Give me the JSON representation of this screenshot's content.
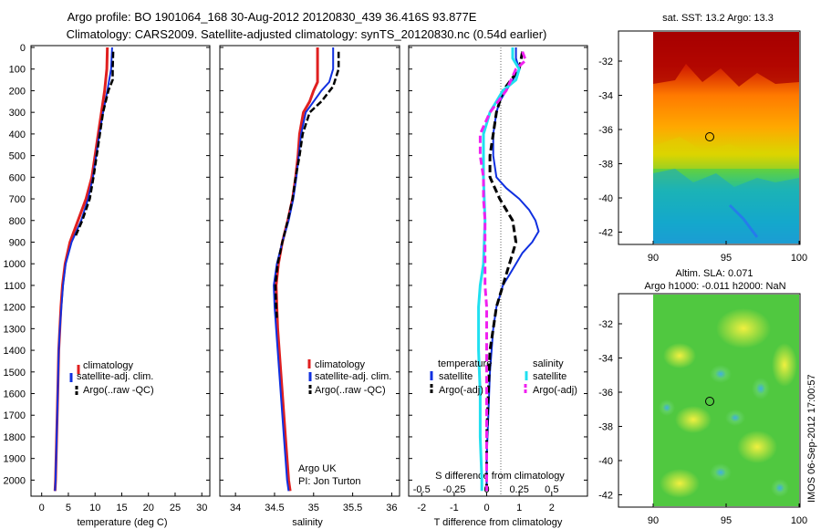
{
  "header": {
    "line1": "Argo profile: BO 1901064_168 30-Aug-2012 20120830_439 36.416S 93.877E",
    "line2": "Climatology: CARS2009. Satellite-adjusted climatology: synTS_20120830.nc (0.54d earlier)"
  },
  "depth_ticks": [
    "0",
    "100",
    "200",
    "300",
    "400",
    "500",
    "600",
    "700",
    "800",
    "900",
    "1000",
    "1100",
    "1200",
    "1300",
    "1400",
    "1500",
    "1600",
    "1700",
    "1800",
    "1900",
    "2000"
  ],
  "panels": {
    "temperature": {
      "xlabel": "temperature (deg C)",
      "xticks": [
        "0",
        "5",
        "10",
        "15",
        "20",
        "25",
        "30"
      ],
      "legend": [
        "climatology",
        "satellite-adj. clim.",
        "Argo(..raw -QC)"
      ]
    },
    "salinity": {
      "xlabel": "salinity",
      "xticks": [
        "34",
        "34.5",
        "35",
        "35.5",
        "36"
      ],
      "legend": [
        "climatology",
        "satellite-adj. clim.",
        "Argo(..raw -QC)"
      ],
      "note1": "Argo UK",
      "note2": "PI: Jon Turton"
    },
    "difference": {
      "xlabel": "T difference from climatology",
      "xticks": [
        "-2",
        "-1",
        "0",
        "1",
        "2"
      ],
      "top_label": "S difference from climatology",
      "top_ticks": [
        "-0.5",
        "-0.25",
        "0",
        "0.25",
        "0.5"
      ],
      "legend_temp_title": "temperature",
      "legend_sal_title": "salinity",
      "legend_temp": [
        "satellite",
        "Argo(-adj)"
      ],
      "legend_sal": [
        "satellite",
        "Argo(-adj)"
      ]
    }
  },
  "maps": {
    "sst": {
      "title": "sat. SST: 13.2 Argo: 13.3",
      "yticks": [
        "-32",
        "-34",
        "-36",
        "-38",
        "-40",
        "-42"
      ],
      "xticks": [
        "90",
        "95",
        "100"
      ]
    },
    "sla": {
      "title1": "Altim. SLA: 0.071",
      "title2": "Argo h1000: -0.011 h2000: NaN",
      "yticks": [
        "-32",
        "-34",
        "-36",
        "-38",
        "-40",
        "-42"
      ],
      "xticks": [
        "90",
        "95",
        "100"
      ]
    }
  },
  "footer": {
    "stamp": "IMOS 06-Sep-2012 17:00:57"
  },
  "colors": {
    "climatology": "#e02020",
    "satellite": "#1030e0",
    "argo": "#000000",
    "sat_sal": "#20e0f0",
    "argo_sal": "#f020f0"
  },
  "chart_data": [
    {
      "type": "line",
      "title": "",
      "xlabel": "temperature (deg C)",
      "ylabel": "",
      "xlim": [
        -2,
        31.5
      ],
      "ylim": [
        2070,
        0
      ],
      "series": [
        {
          "name": "climatology",
          "depth": [
            0,
            100,
            200,
            300,
            400,
            500,
            600,
            700,
            800,
            900,
            1000,
            1100,
            1200,
            1300,
            1400,
            1600,
            1800,
            2000,
            2050
          ],
          "values": [
            12.3,
            12.2,
            11.8,
            11.2,
            10.6,
            10.0,
            9.4,
            8.3,
            6.8,
            5.3,
            4.4,
            3.9,
            3.6,
            3.4,
            3.2,
            3.0,
            2.8,
            2.6,
            2.5
          ]
        },
        {
          "name": "satellite-adj. clim.",
          "depth": [
            0,
            100,
            200,
            300,
            400,
            500,
            600,
            700,
            800,
            900,
            1000,
            1100,
            1200,
            1300,
            1400,
            1600,
            1800,
            2000,
            2050
          ],
          "values": [
            13.2,
            13.0,
            12.3,
            11.5,
            10.8,
            10.2,
            9.6,
            8.7,
            7.4,
            5.6,
            4.5,
            4.0,
            3.7,
            3.4,
            3.2,
            3.0,
            2.8,
            2.6,
            2.5
          ]
        },
        {
          "name": "Argo(..raw -QC)",
          "depth": [
            20,
            100,
            150,
            200,
            300,
            400,
            500,
            600,
            700,
            800,
            880
          ],
          "values": [
            13.4,
            13.3,
            13.3,
            12.5,
            11.5,
            10.9,
            10.3,
            9.7,
            9.0,
            7.6,
            6.2
          ]
        }
      ]
    },
    {
      "type": "line",
      "title": "",
      "xlabel": "salinity",
      "ylabel": "",
      "xlim": [
        33.8,
        36.1
      ],
      "ylim": [
        2070,
        0
      ],
      "series": [
        {
          "name": "climatology",
          "depth": [
            0,
            100,
            160,
            200,
            250,
            300,
            400,
            500,
            600,
            700,
            800,
            900,
            1000,
            1100,
            1200,
            1300,
            1400,
            1600,
            1800,
            2000,
            2050
          ],
          "values": [
            35.05,
            35.05,
            35.05,
            35.0,
            34.95,
            34.87,
            34.82,
            34.8,
            34.77,
            34.73,
            34.67,
            34.6,
            34.55,
            34.52,
            34.53,
            34.54,
            34.56,
            34.6,
            34.64,
            34.68,
            34.7
          ]
        },
        {
          "name": "satellite-adj. clim.",
          "depth": [
            0,
            100,
            160,
            200,
            250,
            300,
            400,
            500,
            600,
            700,
            800,
            900,
            1000,
            1100,
            1200,
            1300,
            1400,
            1600,
            1800,
            2000,
            2050
          ],
          "values": [
            35.25,
            35.25,
            35.2,
            35.1,
            35.0,
            34.9,
            34.84,
            34.81,
            34.78,
            34.74,
            34.68,
            34.6,
            34.53,
            34.49,
            34.5,
            34.52,
            34.54,
            34.58,
            34.62,
            34.66,
            34.68
          ]
        },
        {
          "name": "Argo(..raw -QC)",
          "depth": [
            20,
            100,
            180,
            250,
            300,
            400,
            500,
            600,
            700,
            800,
            900,
            1000,
            1100,
            1200,
            1250
          ],
          "values": [
            35.32,
            35.32,
            35.25,
            35.1,
            34.95,
            34.86,
            34.82,
            34.77,
            34.73,
            34.67,
            34.6,
            34.54,
            34.51,
            34.52,
            34.53
          ]
        }
      ]
    },
    {
      "type": "line",
      "title": "",
      "xlabel": "T difference from climatology",
      "ylabel": "",
      "xlim": [
        -2.4,
        3.1
      ],
      "ylim": [
        2070,
        0
      ],
      "series": [
        {
          "name": "satellite",
          "depth": [
            0,
            50,
            100,
            150,
            200,
            250,
            300,
            400,
            500,
            600,
            650,
            700,
            750,
            800,
            850,
            900,
            950,
            1000,
            1050,
            1100,
            1150,
            1200,
            1300,
            1500,
            1700,
            1900,
            2050
          ],
          "values": [
            0.9,
            0.9,
            1.0,
            0.8,
            0.6,
            0.4,
            0.3,
            0.2,
            0.2,
            0.3,
            0.6,
            1.0,
            1.3,
            1.5,
            1.6,
            1.4,
            1.1,
            0.9,
            0.7,
            0.5,
            0.4,
            0.3,
            0.2,
            0.1,
            0.05,
            0.0,
            0.0
          ]
        },
        {
          "name": "Argo(-adj)",
          "depth": [
            20,
            100,
            200,
            300,
            400,
            500,
            600,
            700,
            800,
            900,
            1000,
            1100,
            1200,
            1300,
            1400,
            1600,
            1800,
            2050
          ],
          "values": [
            1.1,
            1.0,
            0.5,
            0.3,
            0.2,
            0.1,
            0.1,
            0.4,
            0.8,
            0.9,
            0.7,
            0.5,
            0.3,
            0.2,
            0.1,
            0.05,
            0.0,
            0.0
          ]
        },
        {
          "name": "satellite",
          "depth": [
            0,
            50,
            100,
            150,
            200,
            250,
            300,
            400,
            600,
            800,
            1000,
            1100,
            1200,
            1400,
            1600,
            1800,
            2000,
            2050
          ],
          "values": [
            0.8,
            0.8,
            1.0,
            0.9,
            0.5,
            0.3,
            0.1,
            -0.1,
            -0.1,
            -0.05,
            -0.1,
            -0.2,
            -0.25,
            -0.25,
            -0.2,
            -0.2,
            -0.15,
            -0.15
          ]
        },
        {
          "name": "Argo(-adj)",
          "depth": [
            20,
            60,
            100,
            200,
            300,
            400,
            500,
            600,
            700,
            800,
            900,
            1000,
            1100,
            1200,
            1300,
            1400,
            1600,
            1800,
            2050
          ],
          "values": [
            1.1,
            1.2,
            0.9,
            0.6,
            0.1,
            -0.2,
            -0.2,
            -0.1,
            -0.1,
            -0.05,
            -0.05,
            -0.05,
            -0.05,
            0.0,
            0.0,
            0.0,
            0.0,
            0.0,
            0.0
          ]
        }
      ]
    }
  ]
}
